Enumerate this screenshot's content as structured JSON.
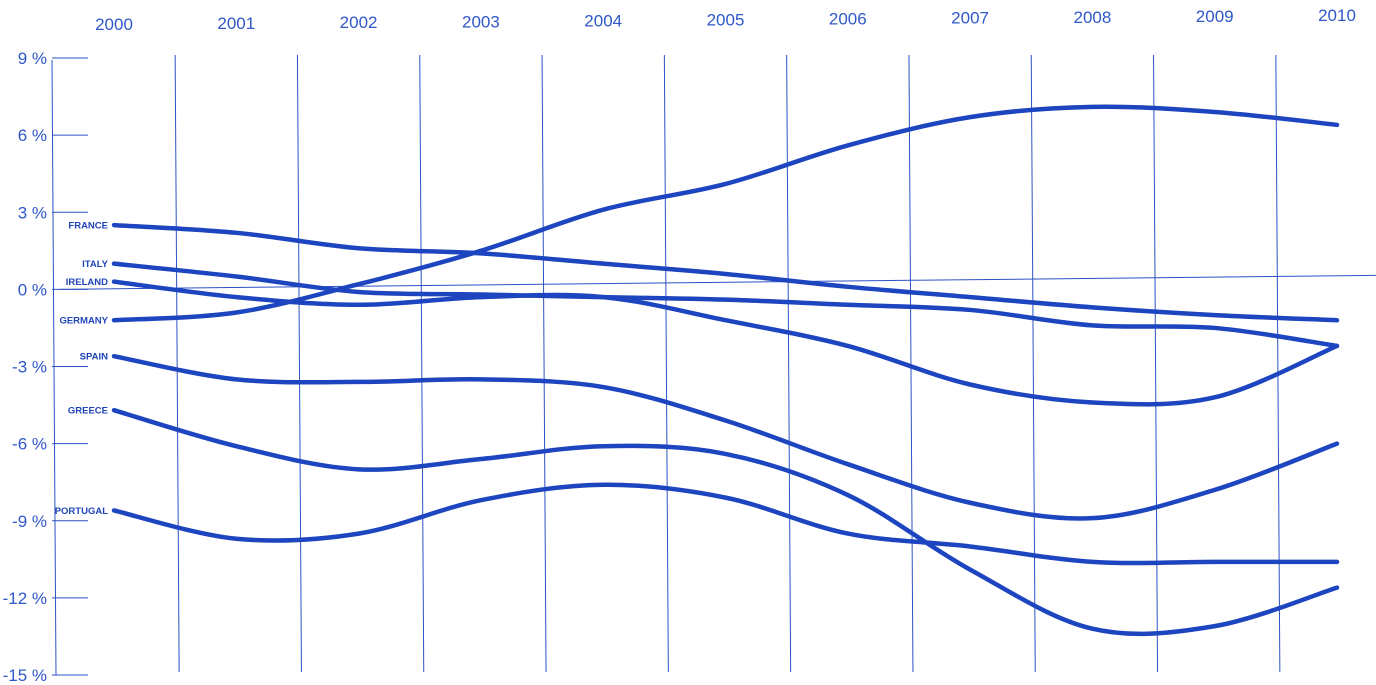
{
  "chart_data": {
    "type": "line",
    "x": [
      "2000",
      "2001",
      "2002",
      "2003",
      "2004",
      "2005",
      "2006",
      "2007",
      "2008",
      "2009",
      "2010"
    ],
    "y_ticks": [
      "9 %",
      "6 %",
      "3 %",
      "0 %",
      "-3 %",
      "-6 %",
      "-9 %",
      "-12 %",
      "-15 %"
    ],
    "y_tick_values": [
      9,
      6,
      3,
      0,
      -3,
      -6,
      -9,
      -12,
      -15
    ],
    "ylim": [
      -15,
      9
    ],
    "grid": "vertical",
    "colors": {
      "line": "#1c45bf",
      "text": "#2f58c9"
    },
    "series": [
      {
        "name": "FRANCE",
        "values": [
          2.5,
          2.2,
          1.6,
          1.4,
          1.0,
          0.6,
          0.1,
          -0.3,
          -0.7,
          -1.0,
          -1.2
        ]
      },
      {
        "name": "ITALY",
        "values": [
          1.0,
          0.5,
          -0.1,
          -0.2,
          -0.3,
          -0.4,
          -0.6,
          -0.8,
          -1.4,
          -1.5,
          -2.2
        ]
      },
      {
        "name": "IRELAND",
        "values": [
          0.3,
          -0.3,
          -0.6,
          -0.3,
          -0.3,
          -1.2,
          -2.2,
          -3.7,
          -4.4,
          -4.2,
          -2.2
        ]
      },
      {
        "name": "GERMANY",
        "values": [
          -1.2,
          -0.9,
          0.2,
          1.5,
          3.1,
          4.1,
          5.6,
          6.7,
          7.1,
          6.9,
          6.4
        ]
      },
      {
        "name": "SPAIN",
        "values": [
          -2.6,
          -3.5,
          -3.6,
          -3.5,
          -3.8,
          -5.1,
          -6.8,
          -8.3,
          -8.9,
          -7.8,
          -6.0
        ]
      },
      {
        "name": "GREECE",
        "values": [
          -4.7,
          -6.1,
          -7.0,
          -6.6,
          -6.1,
          -6.4,
          -8.0,
          -10.9,
          -13.2,
          -13.1,
          -11.6
        ]
      },
      {
        "name": "PORTUGAL",
        "values": [
          -8.6,
          -9.7,
          -9.5,
          -8.2,
          -7.6,
          -8.1,
          -9.5,
          -10.0,
          -10.6,
          -10.6,
          -10.6
        ]
      }
    ]
  }
}
